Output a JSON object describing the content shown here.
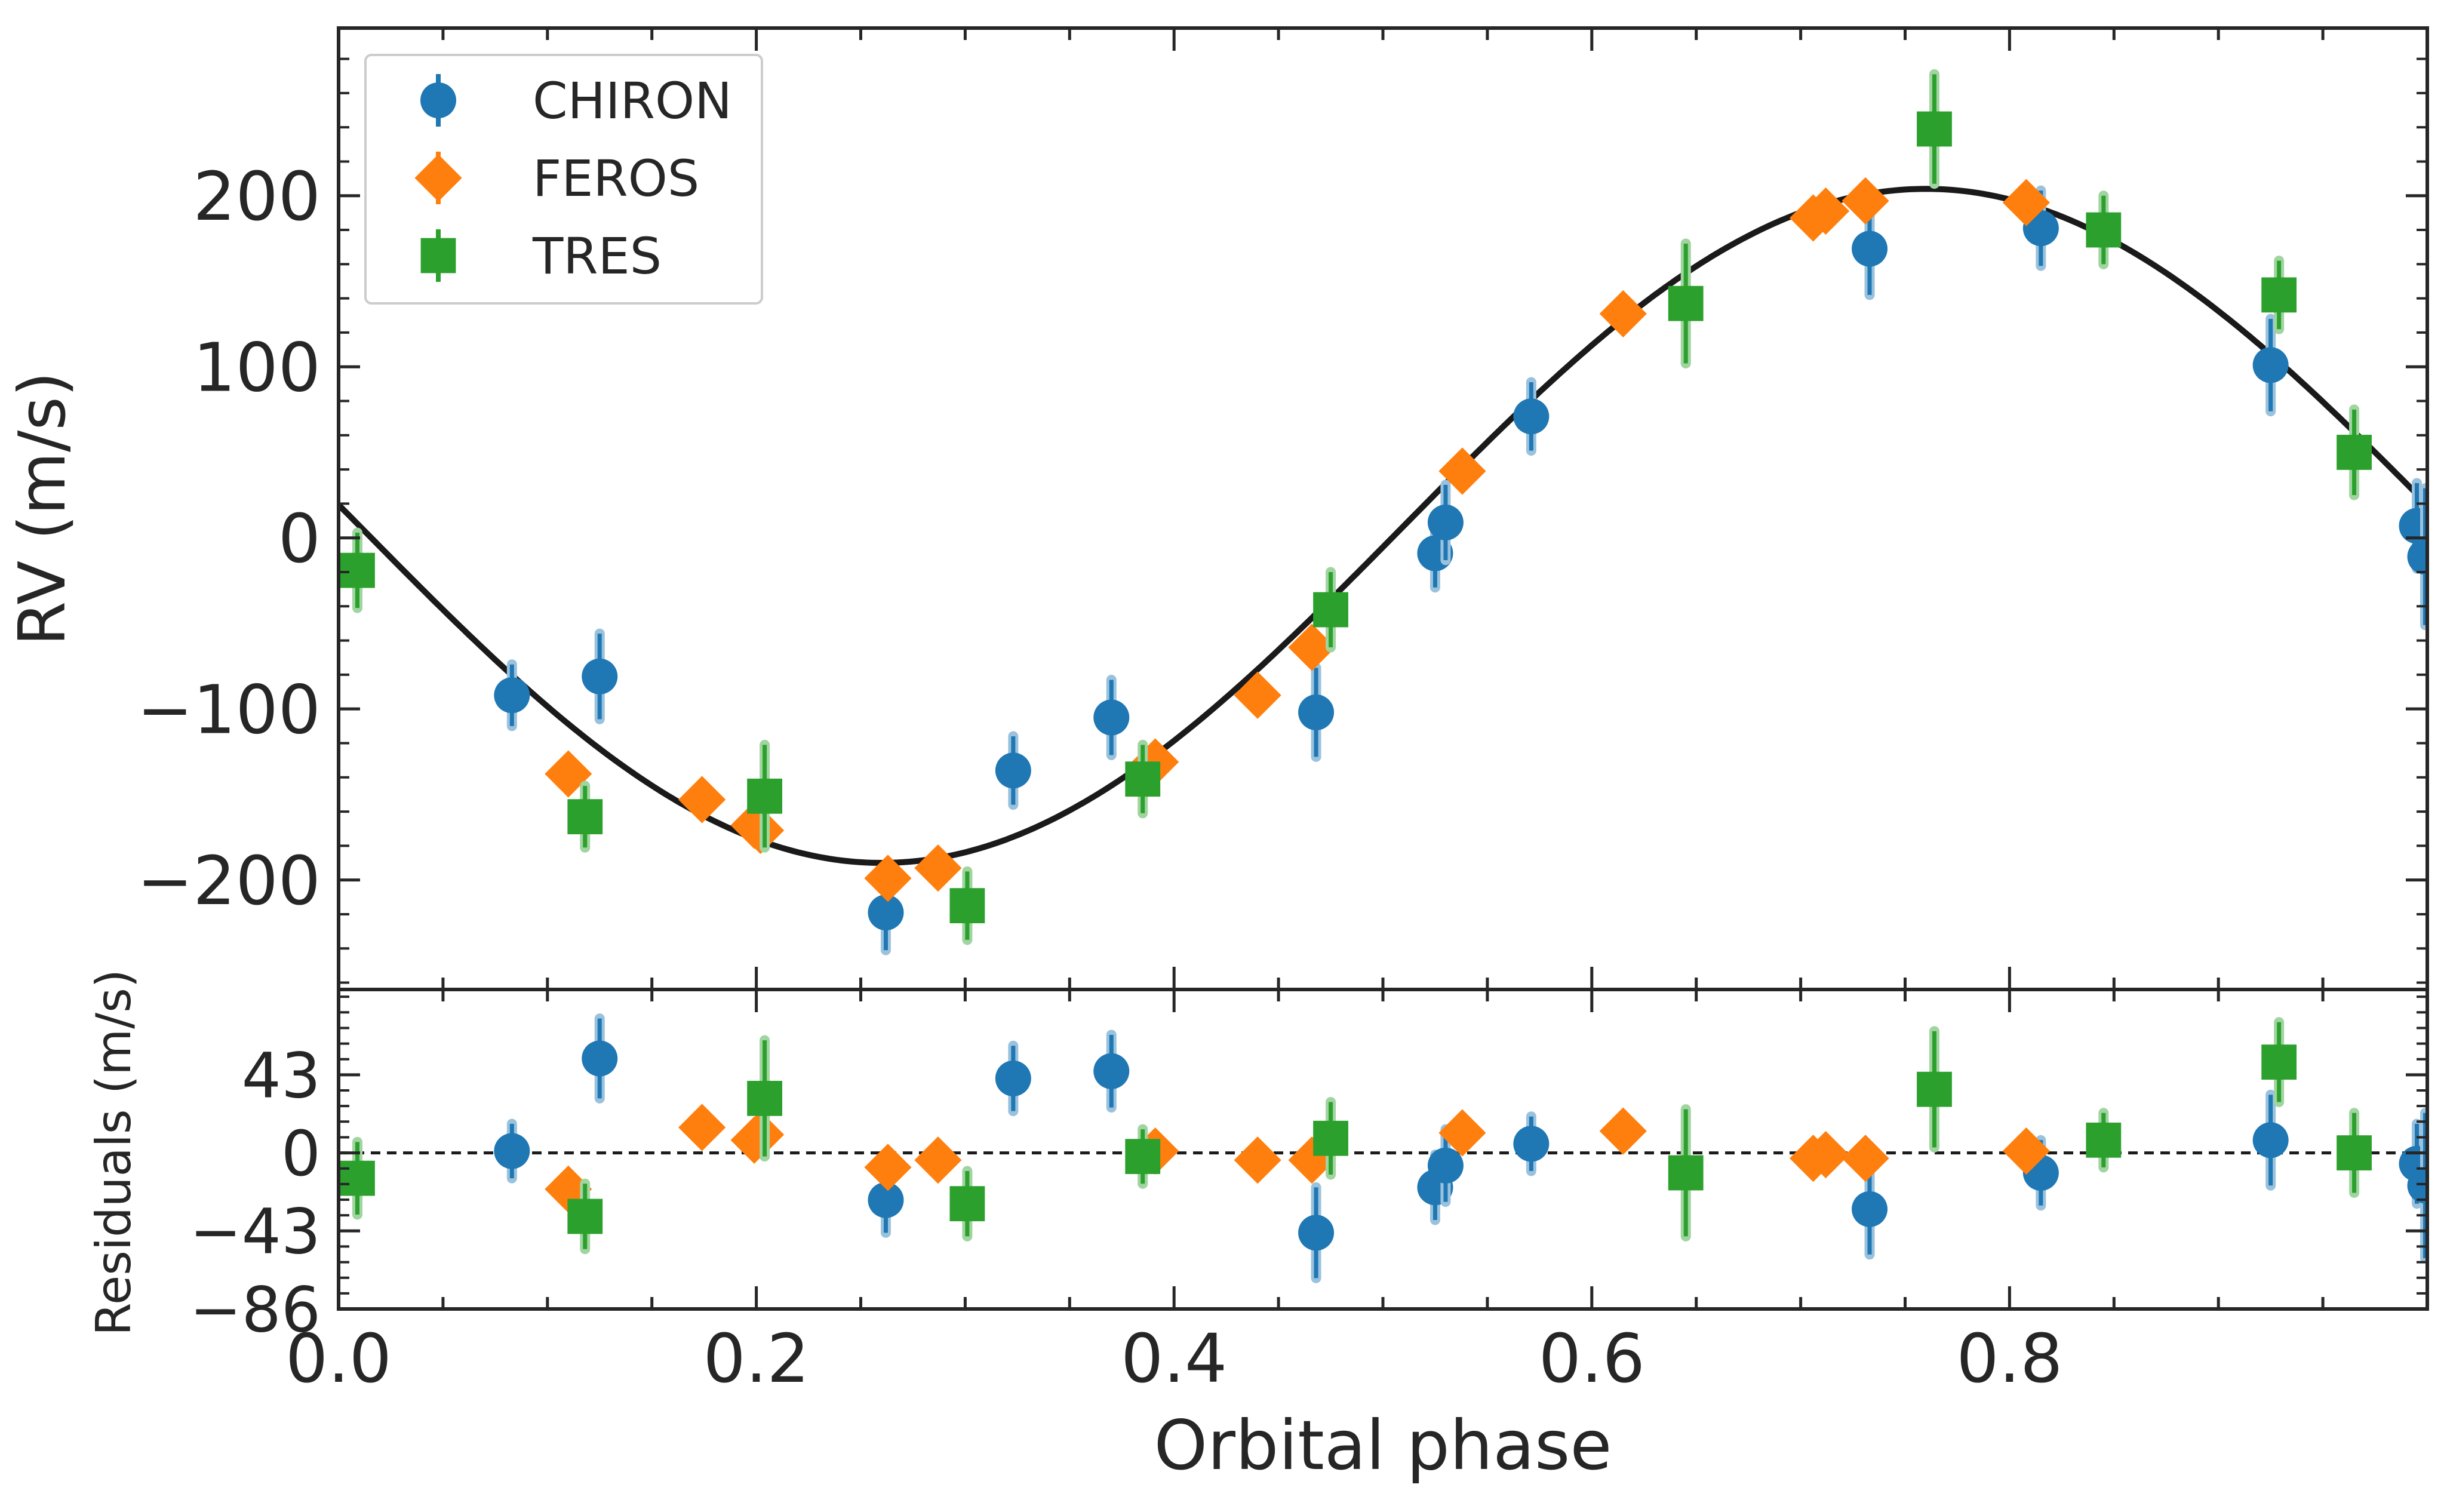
{
  "chart_data": [
    {
      "type": "scatter",
      "xlabel": "",
      "ylabel": "RV (m/s)",
      "xlim": [
        0.0,
        1.0
      ],
      "ylim": [
        -264,
        298
      ],
      "yticks": [
        -200,
        -100,
        0,
        100,
        200
      ],
      "ytick_labels": [
        "−200",
        "−100",
        "0",
        "100",
        "200"
      ],
      "xticks": [
        0.0,
        0.2,
        0.4,
        0.6,
        0.8
      ],
      "legend_position": "top-left",
      "legend": [
        {
          "label": "CHIRON",
          "marker": "circle",
          "color": "#1f77b4"
        },
        {
          "label": "FEROS",
          "marker": "diamond",
          "color": "#ff7f0e"
        },
        {
          "label": "TRES",
          "marker": "square",
          "color": "#2ca02c"
        }
      ],
      "model": {
        "name": "",
        "type": "sinusoid",
        "amplitude": 197,
        "offset": 7,
        "phase_of_minimum": 0.26,
        "color": "#1a1a1a"
      },
      "series": [
        {
          "name": "CHIRON",
          "marker": "circle",
          "color": "#1f77b4",
          "x": [
            0.083,
            0.125,
            0.262,
            0.323,
            0.37,
            0.468,
            0.525,
            0.53,
            0.571,
            0.733,
            0.815,
            0.925,
            0.995,
            0.999
          ],
          "y": [
            -92,
            -81,
            -219,
            -136,
            -105,
            -102,
            -9,
            9,
            71,
            169,
            181,
            101,
            7,
            -11
          ],
          "err": [
            18,
            25,
            22,
            20,
            22,
            26,
            20,
            22,
            20,
            27,
            22,
            27,
            25,
            40
          ]
        },
        {
          "name": "FEROS",
          "marker": "diamond",
          "color": "#ff7f0e",
          "x": [
            0.11,
            0.174,
            0.199,
            0.202,
            0.263,
            0.287,
            0.391,
            0.44,
            0.466,
            0.538,
            0.615,
            0.706,
            0.712,
            0.731,
            0.808
          ],
          "y": [
            -138,
            -153,
            -168,
            -171,
            -199,
            -193,
            -131,
            -92,
            -64,
            39,
            131,
            187,
            191,
            197,
            196
          ],
          "err": [
            8,
            8,
            8,
            8,
            8,
            8,
            8,
            8,
            8,
            8,
            8,
            8,
            8,
            8,
            8
          ]
        },
        {
          "name": "TRES",
          "marker": "square",
          "color": "#2ca02c",
          "x": [
            0.009,
            0.118,
            0.204,
            0.301,
            0.385,
            0.475,
            0.645,
            0.764,
            0.845,
            0.929,
            0.965
          ],
          "y": [
            -19,
            -163,
            -151,
            -215,
            -141,
            -42,
            137,
            239,
            180,
            142,
            50
          ],
          "err": [
            22,
            18,
            30,
            20,
            20,
            22,
            35,
            32,
            20,
            20,
            25
          ]
        }
      ]
    },
    {
      "type": "scatter",
      "xlabel": "Orbital phase",
      "ylabel": "Residuals (m/s)",
      "xlim": [
        0.0,
        1.0
      ],
      "ylim": [
        -86,
        90
      ],
      "yticks": [
        -86,
        -43,
        0,
        43
      ],
      "ytick_labels": [
        "−86",
        "−43",
        "0",
        "43"
      ],
      "xticks": [
        0.0,
        0.2,
        0.4,
        0.6,
        0.8
      ],
      "xtick_labels": [
        "0.0",
        "0.2",
        "0.4",
        "0.6",
        "0.8"
      ],
      "zero_line": {
        "y": 0,
        "style": "dashed",
        "color": "#1a1a1a"
      },
      "series": [
        {
          "name": "CHIRON",
          "marker": "circle",
          "color": "#1f77b4",
          "x": [
            0.083,
            0.125,
            0.262,
            0.323,
            0.37,
            0.468,
            0.525,
            0.53,
            0.571,
            0.733,
            0.815,
            0.925,
            0.995,
            0.999
          ],
          "y": [
            1,
            52,
            -26,
            41,
            45,
            -44,
            -19,
            -7,
            5,
            -31,
            -11,
            7,
            -6,
            -18
          ],
          "err": [
            15,
            22,
            18,
            18,
            20,
            25,
            18,
            20,
            15,
            25,
            18,
            25,
            22,
            40
          ]
        },
        {
          "name": "FEROS",
          "marker": "diamond",
          "color": "#ff7f0e",
          "x": [
            0.11,
            0.174,
            0.199,
            0.202,
            0.263,
            0.287,
            0.391,
            0.44,
            0.466,
            0.538,
            0.615,
            0.706,
            0.712,
            0.731,
            0.808
          ],
          "y": [
            -20,
            14,
            7,
            10,
            -8,
            -4,
            1,
            -4,
            -4,
            11,
            12,
            -3,
            -1,
            -3,
            1
          ],
          "err": [
            6,
            6,
            6,
            6,
            6,
            6,
            6,
            6,
            6,
            6,
            6,
            6,
            6,
            6,
            6
          ]
        },
        {
          "name": "TRES",
          "marker": "square",
          "color": "#2ca02c",
          "x": [
            0.009,
            0.118,
            0.204,
            0.301,
            0.385,
            0.475,
            0.645,
            0.764,
            0.845,
            0.929,
            0.965
          ],
          "y": [
            -14,
            -35,
            30,
            -28,
            -2,
            8,
            -11,
            35,
            7,
            50,
            0
          ],
          "err": [
            20,
            18,
            32,
            18,
            15,
            20,
            35,
            32,
            15,
            22,
            22
          ]
        }
      ]
    }
  ]
}
